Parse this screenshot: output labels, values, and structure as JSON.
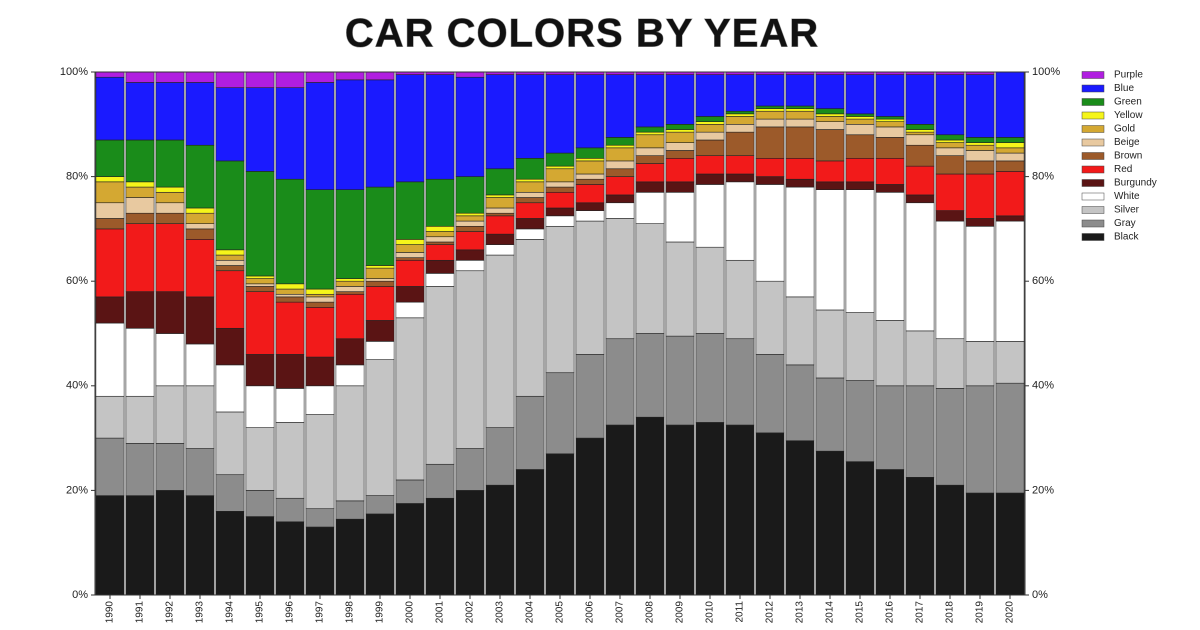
{
  "chart_data": {
    "type": "stacked_bar",
    "title": "CAR COLORS BY YEAR",
    "categories": [
      "1990",
      "1991",
      "1992",
      "1993",
      "1994",
      "1995",
      "1996",
      "1997",
      "1998",
      "1999",
      "2000",
      "2001",
      "2002",
      "2003",
      "2004",
      "2005",
      "2006",
      "2007",
      "2008",
      "2009",
      "2010",
      "2011",
      "2012",
      "2013",
      "2014",
      "2015",
      "2016",
      "2017",
      "2018",
      "2019",
      "2020"
    ],
    "series": [
      {
        "name": "Purple",
        "color": "#b01ee0",
        "values": [
          1,
          2,
          2,
          2,
          3,
          3,
          3,
          2,
          1.5,
          1.5,
          0.5,
          0.5,
          1,
          0.5,
          0.5,
          0.5,
          0.5,
          0.5,
          0.5,
          0.5,
          0.5,
          0.5,
          0.5,
          0.5,
          0.5,
          0.5,
          0.5,
          0.5,
          0.5,
          0.5,
          0
        ]
      },
      {
        "name": "Blue",
        "color": "#1a1aff",
        "values": [
          12,
          11,
          11,
          12,
          14,
          16,
          17.5,
          20.5,
          21,
          20.5,
          20.5,
          20,
          19,
          18,
          16,
          15,
          14,
          12,
          10,
          9.5,
          8,
          7,
          6,
          6,
          6.5,
          7.5,
          8,
          9.5,
          11.5,
          12,
          12.5
        ]
      },
      {
        "name": "Green",
        "color": "#1a8c1a",
        "values": [
          7,
          8,
          9,
          12,
          17,
          20,
          20,
          19,
          17,
          15,
          11,
          9,
          7,
          5,
          4,
          2.5,
          2,
          1.5,
          1,
          1,
          1,
          0.5,
          0.5,
          0.5,
          1,
          0.5,
          0.5,
          1,
          1,
          1,
          1
        ]
      },
      {
        "name": "Yellow",
        "color": "#f5f51a",
        "values": [
          1,
          1,
          1,
          1,
          1,
          0.5,
          1,
          1,
          0.5,
          0.5,
          1,
          1,
          0.5,
          0.5,
          0.5,
          0.5,
          0.5,
          0.5,
          0.5,
          0.5,
          0.5,
          0.5,
          0.5,
          0.5,
          0.5,
          0.5,
          0.5,
          0.5,
          0.5,
          0.5,
          1
        ]
      },
      {
        "name": "Gold",
        "color": "#d4a832",
        "values": [
          4,
          2,
          2,
          2,
          1,
          1,
          1,
          0.5,
          1,
          2,
          1.5,
          1,
          1,
          2,
          2,
          2.5,
          2.5,
          2.5,
          2.5,
          2,
          1.5,
          1.5,
          1.5,
          1.5,
          1,
          1,
          1,
          0.5,
          1,
          1,
          1
        ]
      },
      {
        "name": "Beige",
        "color": "#e8c9a0",
        "values": [
          3,
          3,
          2,
          1,
          1,
          0.5,
          0.5,
          1,
          1,
          0.5,
          1,
          1,
          1,
          1,
          1,
          1,
          1,
          1.5,
          1.5,
          1.5,
          1.5,
          1.5,
          1.5,
          1.5,
          1.5,
          2,
          2,
          2,
          1.5,
          2,
          1.5
        ]
      },
      {
        "name": "Brown",
        "color": "#9c5a2a",
        "values": [
          2,
          2,
          2,
          2,
          1,
          1,
          1,
          1,
          0.5,
          1,
          0.5,
          0.5,
          1,
          0.5,
          1,
          1,
          1,
          1.5,
          1.5,
          1.5,
          3,
          4.5,
          6,
          6,
          6,
          4.5,
          4,
          4,
          3.5,
          2.5,
          2
        ]
      },
      {
        "name": "Red",
        "color": "#f21a1a",
        "values": [
          13,
          13,
          13,
          11,
          11,
          12,
          10,
          9.5,
          8.5,
          6.5,
          5,
          3,
          3.5,
          3.5,
          3,
          3,
          3.5,
          3.5,
          3.5,
          4.5,
          3.5,
          3.5,
          3.5,
          4,
          4,
          4.5,
          5,
          5.5,
          7,
          8.5,
          8.5
        ]
      },
      {
        "name": "Burgundy",
        "color": "#5a1414",
        "values": [
          5,
          7,
          8,
          9,
          7,
          6,
          6.5,
          5.5,
          5,
          4,
          3,
          2.5,
          2,
          2,
          2,
          1.5,
          1.5,
          1.5,
          2,
          2,
          2,
          1.5,
          1.5,
          1.5,
          1.5,
          1.5,
          1.5,
          1.5,
          2,
          1.5,
          1
        ]
      },
      {
        "name": "White",
        "color": "#ffffff",
        "values": [
          14,
          13,
          10,
          8,
          9,
          8,
          6.5,
          5.5,
          4,
          3.5,
          3,
          2.5,
          2,
          2,
          2,
          2,
          2,
          3,
          6,
          9.5,
          12,
          15,
          18.5,
          21,
          23,
          23.5,
          24.5,
          24.5,
          22.5,
          22,
          23
        ]
      },
      {
        "name": "Silver",
        "color": "#c4c4c4",
        "values": [
          8,
          9,
          11,
          12,
          12,
          12,
          14.5,
          18,
          22,
          26,
          31,
          34,
          34,
          33,
          30,
          28,
          25.5,
          23,
          21,
          18,
          16.5,
          15,
          14,
          13,
          13,
          13,
          12.5,
          10.5,
          9.5,
          8.5,
          8
        ]
      },
      {
        "name": "Gray",
        "color": "#8c8c8c",
        "values": [
          11,
          10,
          9,
          9,
          7,
          5,
          4.5,
          3.5,
          3.5,
          3.5,
          4.5,
          6.5,
          8,
          11,
          14,
          15.5,
          16,
          16.5,
          16,
          17,
          17,
          16.5,
          15,
          14.5,
          14,
          15.5,
          16,
          17.5,
          18.5,
          20.5,
          21
        ]
      },
      {
        "name": "Black",
        "color": "#1a1a1a",
        "values": [
          19,
          19,
          20,
          19,
          16,
          15,
          14,
          13,
          14.5,
          15.5,
          17.5,
          18.5,
          20,
          21,
          24,
          27,
          30,
          32.5,
          34,
          32.5,
          33,
          32.5,
          31,
          29.5,
          27.5,
          25.5,
          24,
          22.5,
          21,
          19.5,
          19.5
        ]
      }
    ],
    "ylim": [
      0,
      100
    ],
    "yticks": [
      {
        "value": 0,
        "label": "0%"
      },
      {
        "value": 20,
        "label": "20%"
      },
      {
        "value": 40,
        "label": "40%"
      },
      {
        "value": 60,
        "label": "60%"
      },
      {
        "value": 80,
        "label": "80%"
      },
      {
        "value": 100,
        "label": "100%"
      }
    ],
    "legend": "right"
  }
}
